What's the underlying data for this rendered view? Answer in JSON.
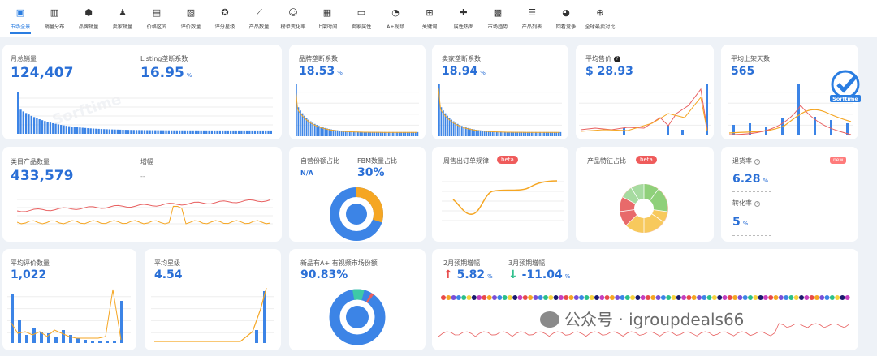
{
  "tabs": [
    {
      "label": "市场全景",
      "icon": "dashboard-icon",
      "glyph": "▣"
    },
    {
      "label": "销量分布",
      "icon": "bar-chart-icon",
      "glyph": "▥"
    },
    {
      "label": "品牌销量",
      "icon": "brand-icon",
      "glyph": "⬢"
    },
    {
      "label": "卖家销量",
      "icon": "seller-icon",
      "glyph": "♟"
    },
    {
      "label": "价格区间",
      "icon": "price-icon",
      "glyph": "▤"
    },
    {
      "label": "评价数量",
      "icon": "review-icon",
      "glyph": "▧"
    },
    {
      "label": "评分星级",
      "icon": "star-icon",
      "glyph": "✪"
    },
    {
      "label": "产品数量",
      "icon": "trend-icon",
      "glyph": "⟋"
    },
    {
      "label": "榜单变化率",
      "icon": "smile-icon",
      "glyph": "☺"
    },
    {
      "label": "上架时间",
      "icon": "calendar-icon",
      "glyph": "▦"
    },
    {
      "label": "卖家属性",
      "icon": "store-icon",
      "glyph": "▭"
    },
    {
      "label": "A+视频",
      "icon": "pie-icon",
      "glyph": "◔"
    },
    {
      "label": "关键词",
      "icon": "keyword-icon",
      "glyph": "⊞"
    },
    {
      "label": "属性热图",
      "icon": "puzzle-icon",
      "glyph": "✚"
    },
    {
      "label": "市场趋势",
      "icon": "chat-icon",
      "glyph": "▩"
    },
    {
      "label": "产品列表",
      "icon": "list-icon",
      "glyph": "☰"
    },
    {
      "label": "回看竞争",
      "icon": "history-icon",
      "glyph": "◕"
    },
    {
      "label": "全球最卖对比",
      "icon": "globe-icon",
      "glyph": "⊕"
    }
  ],
  "cards": {
    "monthly_sales": {
      "label": "月总销量",
      "value": "124,407"
    },
    "listing_ratio": {
      "label": "Listing垄断系数",
      "value": "16.95",
      "unit": "%"
    },
    "brand_ratio": {
      "label": "品牌垄断系数",
      "value": "18.53",
      "unit": "%"
    },
    "seller_ratio": {
      "label": "卖家垄断系数",
      "value": "18.94",
      "unit": "%"
    },
    "avg_price": {
      "label": "平均售价",
      "value": "$ 28.93"
    },
    "avg_days": {
      "label": "平均上架天数",
      "value": "565"
    },
    "product_count": {
      "label": "类目产品数量",
      "value": "433,579"
    },
    "growth": {
      "label": "增幅",
      "value": "--"
    },
    "self_share": {
      "label": "自营份额占比",
      "value": "N/A"
    },
    "fbm_share": {
      "label": "FBM数量占比",
      "value": "30%"
    },
    "weekly_pattern": {
      "label": "周售出订单规律",
      "badge": "beta"
    },
    "feature_ratio": {
      "label": "产品特征占比",
      "badge": "beta"
    },
    "return_rate": {
      "label": "退货率",
      "value": "6.28",
      "unit": "%",
      "badge": "new"
    },
    "conversion": {
      "label": "转化率",
      "value": "5",
      "unit": "%"
    },
    "avg_reviews": {
      "label": "平均评价数量",
      "value": "1,022"
    },
    "avg_rating": {
      "label": "平均星级",
      "value": "4.54"
    },
    "aplus_share": {
      "label": "新品有A+ 有视频市场份额",
      "value": "90.83%"
    },
    "feb_growth": {
      "label": "2月预期增幅",
      "value": "5.82",
      "unit": "%",
      "arrow": "↑"
    },
    "mar_growth": {
      "label": "3月预期增幅",
      "value": "-11.04",
      "unit": "%",
      "arrow": "↓"
    }
  },
  "watermark": "Sorftime",
  "overlay_text": "公众号 · igroupdeals66",
  "colors": {
    "blue": "#3c84e6",
    "orange": "#f5a623",
    "red": "#e86060",
    "accent": "#2a6fd6"
  }
}
